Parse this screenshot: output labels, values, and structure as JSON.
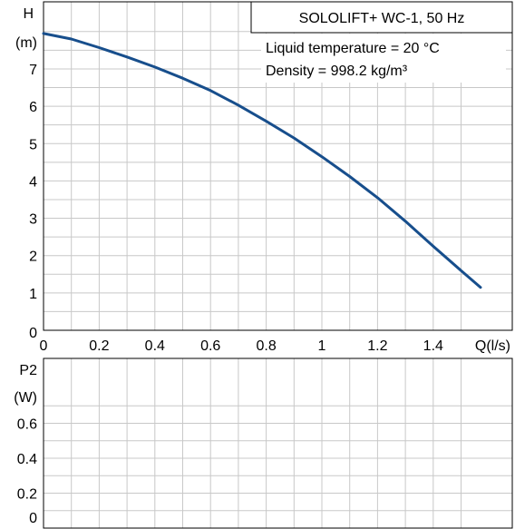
{
  "chart_data": [
    {
      "type": "line",
      "title": "SOLOLIFT+ WC-1, 50 Hz",
      "annotations": [
        "Liquid temperature = 20 °C",
        "Density = 998.2 kg/m³"
      ],
      "ylabel": "H",
      "yunit": "(m)",
      "xlabel": "Q(l/s)",
      "xlim": [
        0,
        1.55
      ],
      "ylim": [
        0,
        8.2
      ],
      "xticks": [
        "0",
        "0.2",
        "0.4",
        "0.6",
        "0.8",
        "1",
        "1.2",
        "1.4"
      ],
      "yticks": [
        "0",
        "1",
        "2",
        "3",
        "4",
        "5",
        "6",
        "7"
      ],
      "grid": true,
      "line_color": "#174e8c",
      "series": [
        {
          "x": [
            0,
            0.1,
            0.2,
            0.3,
            0.4,
            0.5,
            0.6,
            0.7,
            0.8,
            0.9,
            1.0,
            1.1,
            1.2,
            1.3,
            1.4,
            1.5,
            1.57
          ],
          "y": [
            7.95,
            7.8,
            7.57,
            7.32,
            7.05,
            6.75,
            6.42,
            6.03,
            5.6,
            5.15,
            4.65,
            4.12,
            3.55,
            2.92,
            2.25,
            1.6,
            1.15
          ]
        }
      ]
    },
    {
      "type": "line",
      "ylabel": "P2",
      "yunit": "(W)",
      "ylim": [
        0,
        0.8
      ],
      "yticks": [
        "0",
        "0.2",
        "0.4",
        "0.6"
      ],
      "grid": true,
      "series": []
    }
  ]
}
